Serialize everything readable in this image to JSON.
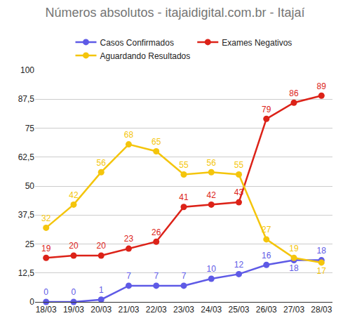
{
  "chart_data": {
    "type": "line",
    "title": "Números absolutos - itajaidigital.com.br - Itajaí",
    "categories": [
      "18/03",
      "19/03",
      "20/03",
      "21/03",
      "22/03",
      "23/03",
      "24/03",
      "25/03",
      "26/03",
      "27/03",
      "28/03"
    ],
    "series": [
      {
        "name": "Casos Confirmados",
        "color": "#5e5ae6",
        "values": [
          0,
          0,
          1,
          7,
          7,
          7,
          10,
          12,
          16,
          18,
          18
        ]
      },
      {
        "name": "Exames Negativos",
        "color": "#dc2218",
        "values": [
          19,
          20,
          20,
          23,
          26,
          41,
          42,
          43,
          79,
          86,
          89
        ]
      },
      {
        "name": "Aguardando Resultados",
        "color": "#f4c50c",
        "values": [
          32,
          42,
          56,
          68,
          65,
          55,
          56,
          55,
          27,
          19,
          17
        ]
      }
    ],
    "ylim": [
      0,
      100
    ],
    "yticks": [
      0,
      {
        "value": 12.5,
        "label": "12,5"
      },
      25,
      {
        "value": 37.5,
        "label": "37,5"
      },
      50,
      {
        "value": 62.5,
        "label": "62,5"
      },
      75,
      {
        "value": 87.5,
        "label": "87,5"
      },
      100
    ],
    "grid": true,
    "legend": "top",
    "data_labels": true,
    "marker": "circle"
  }
}
